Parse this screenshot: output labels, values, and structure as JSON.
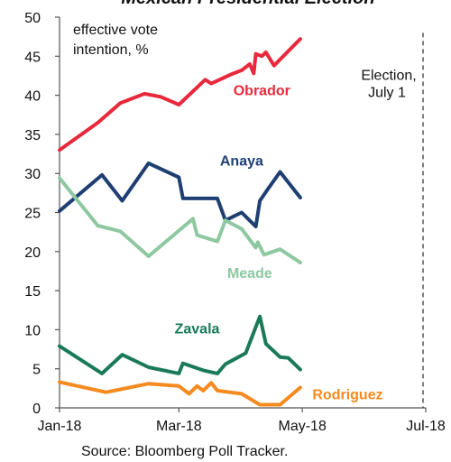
{
  "chart_data": {
    "type": "line",
    "title": "Mexican Presidential Election",
    "ylabel": "effective vote intention, %",
    "xlabel": "",
    "ylim": [
      0,
      50
    ],
    "yticks": [
      0,
      5,
      10,
      15,
      20,
      25,
      30,
      35,
      40,
      45,
      50
    ],
    "xlim": [
      "2018-01-01",
      "2018-07-01"
    ],
    "xticks": [
      {
        "date": "2018-01-01",
        "label": "Jan-18"
      },
      {
        "date": "2018-03-01",
        "label": "Mar-18"
      },
      {
        "date": "2018-05-01",
        "label": "May-18"
      },
      {
        "date": "2018-07-01",
        "label": "Jul-18"
      }
    ],
    "grid": false,
    "legend": "none",
    "event_line": {
      "date": "2018-07-01",
      "label_line1": "Election,",
      "label_line2": "July 1"
    },
    "series": [
      {
        "name": "Obrador",
        "color": "#e8293c",
        "points": [
          [
            "2018-01-01",
            33.0
          ],
          [
            "2018-01-20",
            36.5
          ],
          [
            "2018-01-31",
            39.0
          ],
          [
            "2018-02-12",
            40.2
          ],
          [
            "2018-02-20",
            39.8
          ],
          [
            "2018-03-01",
            38.8
          ],
          [
            "2018-03-14",
            42.0
          ],
          [
            "2018-03-17",
            41.5
          ],
          [
            "2018-03-27",
            42.7
          ],
          [
            "2018-04-01",
            43.2
          ],
          [
            "2018-04-05",
            44.0
          ],
          [
            "2018-04-07",
            42.8
          ],
          [
            "2018-04-08",
            45.3
          ],
          [
            "2018-04-11",
            45.0
          ],
          [
            "2018-04-13",
            45.5
          ],
          [
            "2018-04-17",
            43.8
          ],
          [
            "2018-04-30",
            47.2
          ]
        ]
      },
      {
        "name": "Anaya",
        "color": "#1f3f73",
        "points": [
          [
            "2018-01-01",
            25.2
          ],
          [
            "2018-01-22",
            29.8
          ],
          [
            "2018-02-01",
            26.5
          ],
          [
            "2018-02-14",
            31.3
          ],
          [
            "2018-03-01",
            29.5
          ],
          [
            "2018-03-03",
            26.8
          ],
          [
            "2018-03-13",
            26.8
          ],
          [
            "2018-03-20",
            26.8
          ],
          [
            "2018-03-24",
            24.0
          ],
          [
            "2018-04-01",
            25.0
          ],
          [
            "2018-04-08",
            23.2
          ],
          [
            "2018-04-10",
            26.5
          ],
          [
            "2018-04-14",
            28.0
          ],
          [
            "2018-04-20",
            30.2
          ],
          [
            "2018-04-30",
            26.9
          ]
        ]
      },
      {
        "name": "Meade",
        "color": "#8dc8a0",
        "points": [
          [
            "2018-01-01",
            29.4
          ],
          [
            "2018-01-20",
            23.3
          ],
          [
            "2018-01-31",
            22.6
          ],
          [
            "2018-02-14",
            19.4
          ],
          [
            "2018-03-08",
            24.2
          ],
          [
            "2018-03-10",
            22.1
          ],
          [
            "2018-03-20",
            21.3
          ],
          [
            "2018-03-24",
            24.0
          ],
          [
            "2018-04-01",
            22.9
          ],
          [
            "2018-04-08",
            20.5
          ],
          [
            "2018-04-09",
            21.2
          ],
          [
            "2018-04-12",
            19.6
          ],
          [
            "2018-04-20",
            20.3
          ],
          [
            "2018-04-30",
            18.6
          ]
        ]
      },
      {
        "name": "Zavala",
        "color": "#1a7a58",
        "points": [
          [
            "2018-01-01",
            7.9
          ],
          [
            "2018-01-22",
            4.4
          ],
          [
            "2018-02-01",
            6.8
          ],
          [
            "2018-02-14",
            5.2
          ],
          [
            "2018-03-01",
            4.4
          ],
          [
            "2018-03-03",
            5.7
          ],
          [
            "2018-03-13",
            4.8
          ],
          [
            "2018-03-20",
            4.4
          ],
          [
            "2018-03-24",
            5.6
          ],
          [
            "2018-04-03",
            7.0
          ],
          [
            "2018-04-10",
            11.7
          ],
          [
            "2018-04-13",
            8.2
          ],
          [
            "2018-04-20",
            6.5
          ],
          [
            "2018-04-24",
            6.4
          ],
          [
            "2018-04-30",
            4.9
          ]
        ]
      },
      {
        "name": "Rodriguez",
        "color": "#f58a1f",
        "points": [
          [
            "2018-01-01",
            3.3
          ],
          [
            "2018-01-24",
            2.0
          ],
          [
            "2018-02-14",
            3.1
          ],
          [
            "2018-03-01",
            2.8
          ],
          [
            "2018-03-06",
            1.8
          ],
          [
            "2018-03-10",
            2.8
          ],
          [
            "2018-03-13",
            2.2
          ],
          [
            "2018-03-17",
            3.2
          ],
          [
            "2018-03-20",
            2.2
          ],
          [
            "2018-04-01",
            1.8
          ],
          [
            "2018-04-10",
            0.4
          ],
          [
            "2018-04-20",
            0.4
          ],
          [
            "2018-04-30",
            2.6
          ]
        ]
      }
    ]
  },
  "source": "Source: Bloomberg Poll Tracker."
}
